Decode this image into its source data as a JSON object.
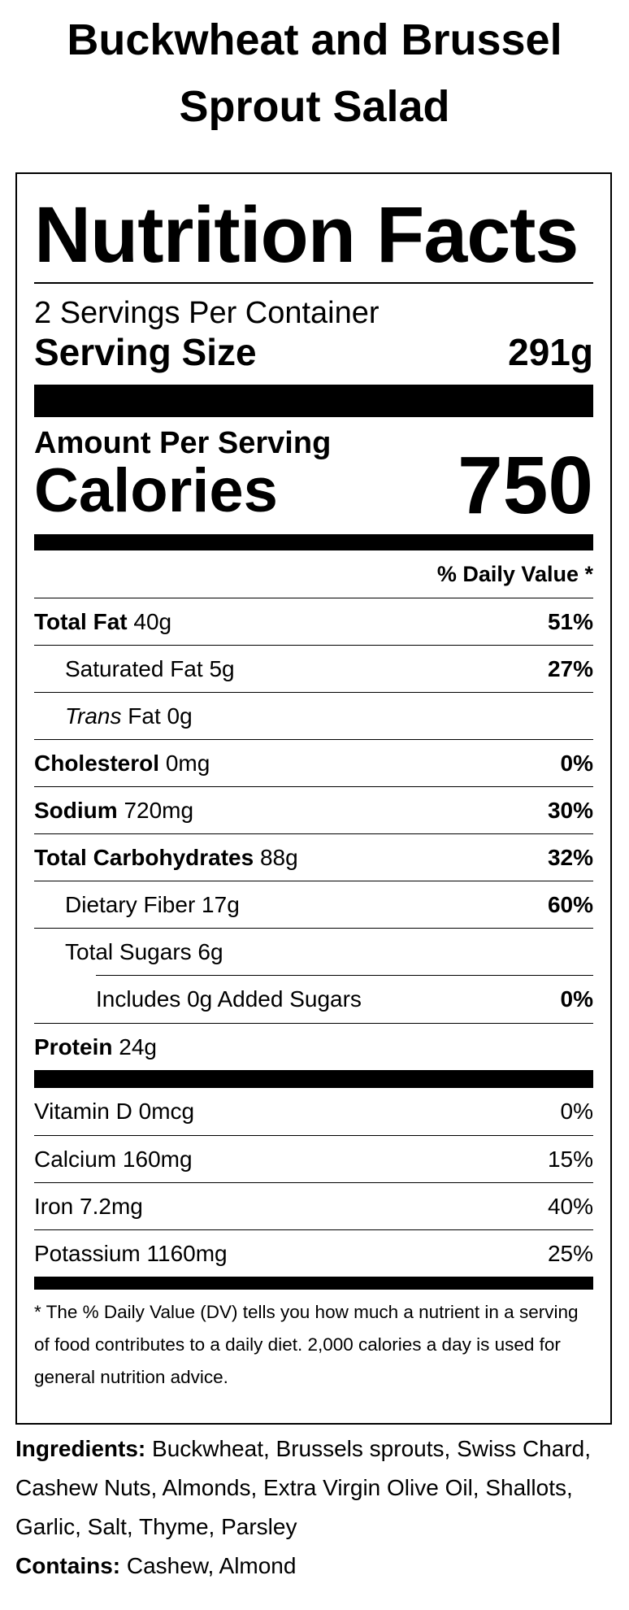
{
  "recipe": {
    "title": "Buckwheat and Brussel Sprout Salad"
  },
  "label": {
    "heading": "Nutrition Facts",
    "servings_per_container": "2 Servings Per Container",
    "serving_size_label": "Serving Size",
    "serving_size_value": "291g",
    "amount_per_serving": "Amount Per Serving",
    "calories_label": "Calories",
    "calories_value": "750",
    "daily_value_header": "% Daily Value *",
    "nutrients": [
      {
        "name": "Total Fat",
        "amount": "40g",
        "dv": "51%"
      },
      {
        "name": "Saturated Fat",
        "amount": "5g",
        "dv": "27%"
      },
      {
        "name_italic": "Trans",
        "name": "Fat",
        "amount": "0g",
        "dv": ""
      },
      {
        "name": "Cholesterol",
        "amount": "0mg",
        "dv": "0%"
      },
      {
        "name": "Sodium",
        "amount": "720mg",
        "dv": "30%"
      },
      {
        "name": "Total Carbohydrates",
        "amount": "88g",
        "dv": "32%"
      },
      {
        "name": "Dietary Fiber",
        "amount": "17g",
        "dv": "60%"
      },
      {
        "name": "Total Sugars",
        "amount": "6g",
        "dv": ""
      },
      {
        "name": "Includes 0g Added Sugars",
        "amount": "",
        "dv": "0%"
      },
      {
        "name": "Protein",
        "amount": "24g",
        "dv": ""
      }
    ],
    "vitamins": [
      {
        "name": "Vitamin D",
        "amount": "0mcg",
        "dv": "0%"
      },
      {
        "name": "Calcium",
        "amount": "160mg",
        "dv": "15%"
      },
      {
        "name": "Iron",
        "amount": "7.2mg",
        "dv": "40%"
      },
      {
        "name": "Potassium",
        "amount": "1160mg",
        "dv": "25%"
      }
    ],
    "footnote": "* The % Daily Value (DV) tells you how much a nutrient in a serving of food contributes to a daily diet. 2,000 calories a day is used for general nutrition advice."
  },
  "ingredients": {
    "ingredients_label": "Ingredients:",
    "ingredients_text": "Buckwheat, Brussels sprouts, Swiss Chard, Cashew Nuts, Almonds, Extra Virgin Olive Oil, Shallots, Garlic, Salt, Thyme, Parsley",
    "contains_label": "Contains:",
    "contains_text": "Cashew, Almond"
  }
}
